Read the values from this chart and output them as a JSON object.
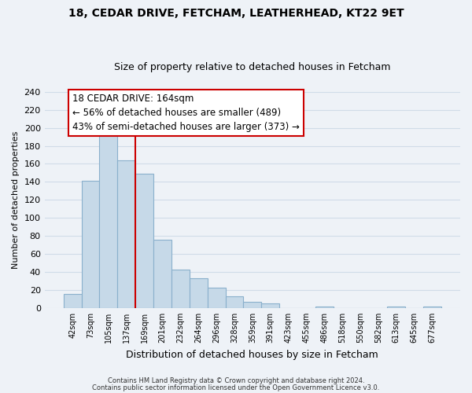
{
  "title": "18, CEDAR DRIVE, FETCHAM, LEATHERHEAD, KT22 9ET",
  "subtitle": "Size of property relative to detached houses in Fetcham",
  "xlabel": "Distribution of detached houses by size in Fetcham",
  "ylabel": "Number of detached properties",
  "footnote1": "Contains HM Land Registry data © Crown copyright and database right 2024.",
  "footnote2": "Contains public sector information licensed under the Open Government Licence v3.0.",
  "bar_labels": [
    "42sqm",
    "73sqm",
    "105sqm",
    "137sqm",
    "169sqm",
    "201sqm",
    "232sqm",
    "264sqm",
    "296sqm",
    "328sqm",
    "359sqm",
    "391sqm",
    "423sqm",
    "455sqm",
    "486sqm",
    "518sqm",
    "550sqm",
    "582sqm",
    "613sqm",
    "645sqm",
    "677sqm"
  ],
  "bar_values": [
    16,
    141,
    200,
    164,
    149,
    76,
    43,
    33,
    23,
    13,
    7,
    5,
    0,
    0,
    2,
    0,
    0,
    0,
    2,
    0,
    2
  ],
  "bar_color": "#c6d9e8",
  "bar_edgecolor": "#8ab0cc",
  "vline_color": "#cc0000",
  "vline_x_idx": 4,
  "annotation_title": "18 CEDAR DRIVE: 164sqm",
  "annotation_line1": "← 56% of detached houses are smaller (489)",
  "annotation_line2": "43% of semi-detached houses are larger (373) →",
  "annotation_box_facecolor": "#ffffff",
  "annotation_box_edgecolor": "#cc0000",
  "ylim": [
    0,
    240
  ],
  "yticks": [
    0,
    20,
    40,
    60,
    80,
    100,
    120,
    140,
    160,
    180,
    200,
    220,
    240
  ],
  "bg_color": "#eef2f7",
  "grid_color": "#d0dce8",
  "title_fontsize": 10,
  "subtitle_fontsize": 9
}
